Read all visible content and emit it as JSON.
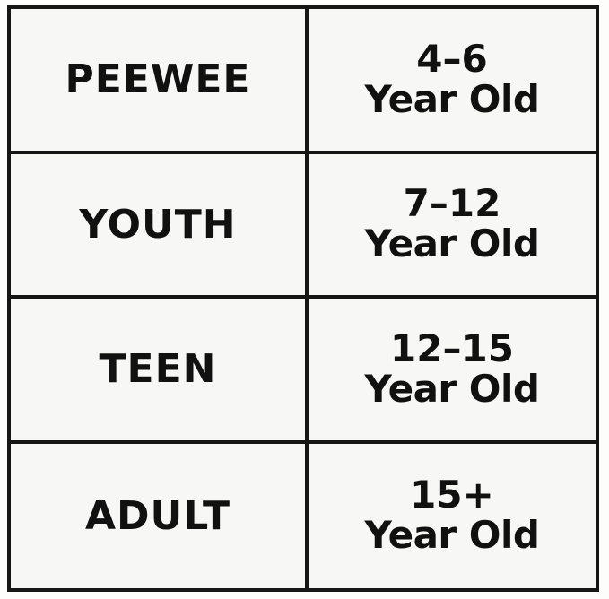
{
  "rows": [
    {
      "group": "PEEWEE",
      "range": "4–6",
      "unit": "Year Old"
    },
    {
      "group": "YOUTH",
      "range": "7–12",
      "unit": "Year Old"
    },
    {
      "group": "TEEN",
      "range": "12–15",
      "unit": "Year Old"
    },
    {
      "group": "ADULT",
      "range": "15+",
      "unit": "Year Old"
    }
  ]
}
